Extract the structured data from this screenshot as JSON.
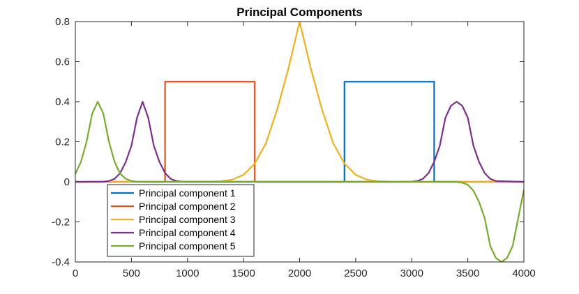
{
  "chart_data": {
    "type": "line",
    "title": "Principal Components",
    "xlabel": "",
    "ylabel": "",
    "xlim": [
      0,
      4000
    ],
    "ylim": [
      -0.4,
      0.8
    ],
    "x_ticks": [
      0,
      500,
      1000,
      1500,
      2000,
      2500,
      3000,
      3500,
      4000
    ],
    "y_ticks": [
      -0.4,
      -0.2,
      0,
      0.2,
      0.4,
      0.6,
      0.8
    ],
    "x_tick_labels": [
      "0",
      "500",
      "1000",
      "1500",
      "2000",
      "2500",
      "3000",
      "3500",
      "4000"
    ],
    "y_tick_labels": [
      "-0.4",
      "-0.2",
      "0",
      "0.2",
      "0.4",
      "0.6",
      "0.8"
    ],
    "grid": false,
    "box": true,
    "legend_position": "bottom-left",
    "series": [
      {
        "name": "Principal component 1",
        "color": "#0072bd",
        "x": [
          0,
          2400,
          2400,
          3200,
          3200,
          4000
        ],
        "y": [
          0,
          0,
          0.5,
          0.5,
          0,
          0
        ]
      },
      {
        "name": "Principal component 2",
        "color": "#d95319",
        "x": [
          0,
          800,
          800,
          1600,
          1600,
          4000
        ],
        "y": [
          0,
          0,
          0.5,
          0.5,
          0,
          0
        ]
      },
      {
        "name": "Principal component 3",
        "color": "#edb120",
        "x": [
          0,
          1200,
          1300,
          1400,
          1500,
          1600,
          1700,
          1800,
          1900,
          2000,
          2100,
          2200,
          2300,
          2400,
          2500,
          2600,
          2700,
          2800,
          3000,
          4000
        ],
        "y": [
          0,
          0.001,
          0.003,
          0.011,
          0.035,
          0.091,
          0.193,
          0.361,
          0.565,
          0.8,
          0.565,
          0.361,
          0.193,
          0.091,
          0.035,
          0.011,
          0.003,
          0.001,
          0,
          0
        ]
      },
      {
        "name": "Principal component 4",
        "color": "#7e2f8e",
        "x": [
          0,
          250,
          300,
          350,
          400,
          450,
          500,
          550,
          600,
          650,
          700,
          750,
          800,
          850,
          900,
          950,
          1000,
          2950,
          3000,
          3050,
          3100,
          3150,
          3200,
          3250,
          3300,
          3350,
          3400,
          3450,
          3500,
          3550,
          3600,
          3650,
          3700,
          3750,
          4000
        ],
        "y": [
          0,
          0.001,
          0.004,
          0.015,
          0.044,
          0.1,
          0.18,
          0.32,
          0.4,
          0.32,
          0.18,
          0.1,
          0.044,
          0.015,
          0.004,
          0.001,
          0,
          0,
          0.001,
          0.004,
          0.015,
          0.044,
          0.1,
          0.18,
          0.32,
          0.38,
          0.4,
          0.38,
          0.32,
          0.18,
          0.1,
          0.044,
          0.015,
          0.004,
          0
        ]
      },
      {
        "name": "Principal component 5",
        "color": "#77ac30",
        "x": [
          0,
          50,
          100,
          150,
          200,
          250,
          300,
          350,
          400,
          450,
          500,
          550,
          600,
          3400,
          3450,
          3500,
          3550,
          3600,
          3650,
          3700,
          3750,
          3800,
          3850,
          3900,
          3950,
          4000
        ],
        "y": [
          0.04,
          0.1,
          0.2,
          0.34,
          0.4,
          0.34,
          0.2,
          0.1,
          0.04,
          0.015,
          0.004,
          0.001,
          0,
          0,
          -0.004,
          -0.015,
          -0.044,
          -0.1,
          -0.18,
          -0.32,
          -0.38,
          -0.4,
          -0.38,
          -0.32,
          -0.18,
          -0.04
        ]
      }
    ]
  }
}
